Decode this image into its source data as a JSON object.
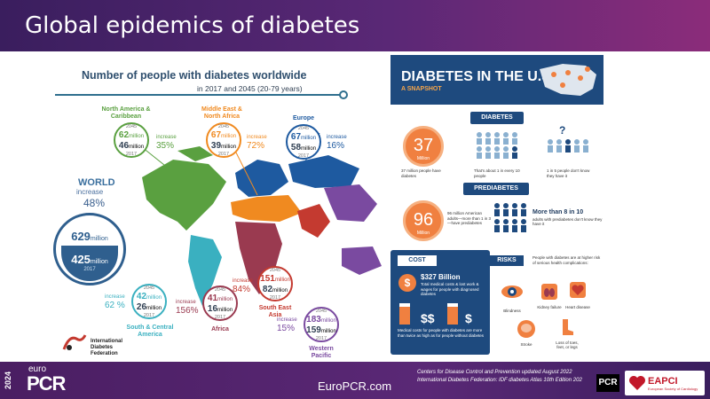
{
  "header": {
    "title": "Global epidemics of diabetes"
  },
  "world_infographic": {
    "title": "Number of people with diabetes worldwide",
    "subtitle": "in 2017 and 2045 (20-79 years)",
    "world": {
      "label": "WORLD",
      "increase_label": "increase",
      "increase_pct": "48%",
      "v2045": "629",
      "v2017": "425",
      "unit": "million",
      "year2017": "2017"
    },
    "regions": [
      {
        "name": "North America & Caribbean",
        "y2045": "2045",
        "v2045": "62",
        "v2017": "46",
        "unit": "million",
        "y2017": "2017",
        "increase_label": "increase",
        "increase_pct": "35%"
      },
      {
        "name": "Middle East & North Africa",
        "y2045": "2045",
        "v2045": "67",
        "v2017": "39",
        "unit": "million",
        "y2017": "2017",
        "increase_label": "increase",
        "increase_pct": "72%"
      },
      {
        "name": "Europe",
        "y2045": "2045",
        "v2045": "67",
        "v2017": "58",
        "unit": "million",
        "y2017": "2017",
        "increase_label": "increase",
        "increase_pct": "16%"
      },
      {
        "name": "South & Central America",
        "y2045": "2045",
        "v2045": "42",
        "v2017": "26",
        "unit": "million",
        "y2017": "2017",
        "increase_label": "increase",
        "increase_pct": "62 %"
      },
      {
        "name": "Africa",
        "y2045": "2045",
        "v2045": "41",
        "v2017": "16",
        "unit": "million",
        "y2017": "2017",
        "increase_label": "increase",
        "increase_pct": "156%"
      },
      {
        "name": "South East Asia",
        "y2045": "2045",
        "v2045": "151",
        "v2017": "82",
        "unit": "million",
        "y2017": "2017",
        "increase_label": "increase",
        "increase_pct": "84%"
      },
      {
        "name": "Western Pacific",
        "y2045": "2045",
        "v2045": "183",
        "v2017": "159",
        "unit": "million",
        "y2017": "2017",
        "increase_label": "increase",
        "increase_pct": "15%"
      }
    ],
    "idf": {
      "line1": "International",
      "line2": "Diabetes",
      "line3": "Federation"
    }
  },
  "us_snapshot": {
    "title": "DIABETES IN THE U.S",
    "subtitle": "A SNAPSHOT",
    "diabetes": {
      "tag": "DIABETES",
      "value": "37",
      "unit": "Million",
      "desc_people": "37 million people have diabetes",
      "desc_ratio": "That's about 1 in every 10 people",
      "desc_unaware": "1 in 5 people don't know they have it",
      "question": "?"
    },
    "prediabetes": {
      "tag": "PREDIABETES",
      "value": "96",
      "unit": "Million",
      "desc": "96 million American adults—more than 1 in 3—have prediabetes",
      "headline": "More than 8 in 10",
      "headline_sub": "adults with prediabetes don't know they have it"
    },
    "cost": {
      "tag": "COST",
      "amount": "$327 Billion",
      "desc": "Total medical costs & lost work & wages for people with diagnosed diabetes",
      "desc2": "Medical costs for people with diabetes are more than twice as high as for people without diabetes"
    },
    "risks": {
      "tag": "RISKS",
      "desc": "People with diabetes are at higher risk of serious health complications:",
      "items": [
        "Blindness",
        "Kidney failure",
        "Heart disease",
        "Stroke",
        "Loss of toes, feet, or legs"
      ]
    }
  },
  "footer": {
    "year": "2024",
    "euro": "euro",
    "pcr": "PCR",
    "url": "EuroPCR.com",
    "source1": "Centers for Disease Control and Prevention updated August 2022",
    "source2": "International Diabetes Federation: IDF diabetes Atlas 10th Edition 202",
    "pcr_logo": "PCR",
    "eapci": "EAPCI",
    "eapci_sub": "European Society of Cardiology"
  },
  "colors": {
    "north_america": "#5aa040",
    "mena": "#f08a20",
    "europe": "#1e5aa0",
    "south_america": "#3ab0c0",
    "africa": "#9a3a50",
    "sea": "#c43a30",
    "western_pacific": "#7a4aa0",
    "accent_orange": "#f08040",
    "navy": "#1e4a7e"
  }
}
